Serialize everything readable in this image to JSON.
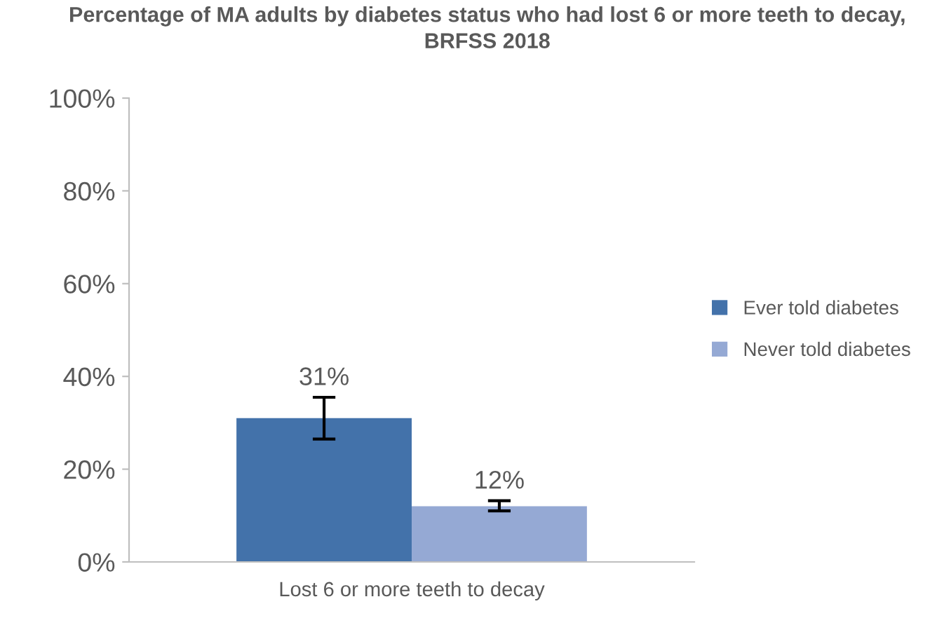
{
  "chart_data": {
    "type": "bar",
    "title": "Percentage of MA adults by diabetes status who had lost 6 or more teeth to decay, BRFSS 2018",
    "categories": [
      "Lost 6 or more teeth to decay"
    ],
    "series": [
      {
        "name": "Ever told diabetes",
        "color": "#4372aa",
        "values": [
          31
        ],
        "errors": [
          [
            26.5,
            35.5
          ]
        ],
        "value_labels": [
          "31%"
        ]
      },
      {
        "name": "Never told diabetes",
        "color": "#95a9d4",
        "values": [
          12
        ],
        "errors": [
          [
            11,
            13.2
          ]
        ],
        "value_labels": [
          "12%"
        ]
      }
    ],
    "ylim": [
      0,
      100
    ],
    "yticks": [
      {
        "value": 0,
        "label": "0%"
      },
      {
        "value": 20,
        "label": "20%"
      },
      {
        "value": 40,
        "label": "40%"
      },
      {
        "value": 60,
        "label": "60%"
      },
      {
        "value": 80,
        "label": "80%"
      },
      {
        "value": 100,
        "label": "100%"
      }
    ],
    "grid": false,
    "legend": "right"
  }
}
